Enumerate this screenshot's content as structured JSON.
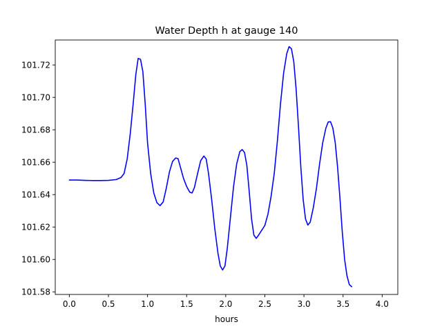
{
  "chart_data": {
    "type": "line",
    "title": "Water Depth h at gauge 140",
    "xlabel": "hours",
    "ylabel": "",
    "xlim": [
      -0.18,
      4.2
    ],
    "ylim": [
      101.5784,
      101.7354
    ],
    "xticks": [
      0.0,
      0.5,
      1.0,
      1.5,
      2.0,
      2.5,
      3.0,
      3.5,
      4.0
    ],
    "xtick_labels": [
      "0.0",
      "0.5",
      "1.0",
      "1.5",
      "2.0",
      "2.5",
      "3.0",
      "3.5",
      "4.0"
    ],
    "yticks": [
      101.58,
      101.6,
      101.62,
      101.64,
      101.66,
      101.68,
      101.7,
      101.72
    ],
    "ytick_labels": [
      "101.58",
      "101.60",
      "101.62",
      "101.64",
      "101.66",
      "101.68",
      "101.70",
      "101.72"
    ],
    "grid": false,
    "legend": "none",
    "series": [
      {
        "color": "#0000ff",
        "points": [
          [
            0.0,
            101.649
          ],
          [
            0.1,
            101.649
          ],
          [
            0.2,
            101.6488
          ],
          [
            0.3,
            101.6487
          ],
          [
            0.4,
            101.6487
          ],
          [
            0.5,
            101.6488
          ],
          [
            0.6,
            101.6493
          ],
          [
            0.66,
            101.6505
          ],
          [
            0.7,
            101.653
          ],
          [
            0.74,
            101.662
          ],
          [
            0.78,
            101.678
          ],
          [
            0.82,
            101.698
          ],
          [
            0.85,
            101.714
          ],
          [
            0.88,
            101.724
          ],
          [
            0.91,
            101.7235
          ],
          [
            0.94,
            101.716
          ],
          [
            0.97,
            101.696
          ],
          [
            1.0,
            101.672
          ],
          [
            1.04,
            101.653
          ],
          [
            1.08,
            101.641
          ],
          [
            1.12,
            101.635
          ],
          [
            1.16,
            101.6332
          ],
          [
            1.2,
            101.6355
          ],
          [
            1.24,
            101.644
          ],
          [
            1.28,
            101.654
          ],
          [
            1.32,
            101.6605
          ],
          [
            1.36,
            101.6626
          ],
          [
            1.39,
            101.6622
          ],
          [
            1.42,
            101.657
          ],
          [
            1.46,
            101.65
          ],
          [
            1.5,
            101.645
          ],
          [
            1.54,
            101.6415
          ],
          [
            1.57,
            101.641
          ],
          [
            1.6,
            101.6445
          ],
          [
            1.64,
            101.653
          ],
          [
            1.68,
            101.661
          ],
          [
            1.72,
            101.6638
          ],
          [
            1.75,
            101.662
          ],
          [
            1.78,
            101.653
          ],
          [
            1.82,
            101.637
          ],
          [
            1.86,
            101.619
          ],
          [
            1.9,
            101.604
          ],
          [
            1.93,
            101.596
          ],
          [
            1.96,
            101.5935
          ],
          [
            1.99,
            101.596
          ],
          [
            2.02,
            101.607
          ],
          [
            2.06,
            101.626
          ],
          [
            2.1,
            101.645
          ],
          [
            2.14,
            101.659
          ],
          [
            2.18,
            101.6665
          ],
          [
            2.21,
            101.6678
          ],
          [
            2.24,
            101.666
          ],
          [
            2.27,
            101.658
          ],
          [
            2.3,
            101.642
          ],
          [
            2.33,
            101.625
          ],
          [
            2.36,
            101.615
          ],
          [
            2.39,
            101.613
          ],
          [
            2.42,
            101.615
          ],
          [
            2.46,
            101.618
          ],
          [
            2.5,
            101.621
          ],
          [
            2.54,
            101.628
          ],
          [
            2.58,
            101.639
          ],
          [
            2.62,
            101.653
          ],
          [
            2.66,
            101.673
          ],
          [
            2.7,
            101.696
          ],
          [
            2.74,
            101.715
          ],
          [
            2.78,
            101.727
          ],
          [
            2.81,
            101.7313
          ],
          [
            2.84,
            101.73
          ],
          [
            2.87,
            101.722
          ],
          [
            2.9,
            101.705
          ],
          [
            2.93,
            101.682
          ],
          [
            2.96,
            101.657
          ],
          [
            2.99,
            101.637
          ],
          [
            3.02,
            101.625
          ],
          [
            3.05,
            101.6212
          ],
          [
            3.08,
            101.623
          ],
          [
            3.12,
            101.632
          ],
          [
            3.16,
            101.644
          ],
          [
            3.2,
            101.659
          ],
          [
            3.24,
            101.672
          ],
          [
            3.28,
            101.681
          ],
          [
            3.31,
            101.6848
          ],
          [
            3.34,
            101.685
          ],
          [
            3.37,
            101.681
          ],
          [
            3.4,
            101.672
          ],
          [
            3.43,
            101.657
          ],
          [
            3.46,
            101.638
          ],
          [
            3.49,
            101.617
          ],
          [
            3.52,
            101.6
          ],
          [
            3.55,
            101.59
          ],
          [
            3.58,
            101.5845
          ],
          [
            3.61,
            101.5832
          ]
        ]
      }
    ]
  }
}
